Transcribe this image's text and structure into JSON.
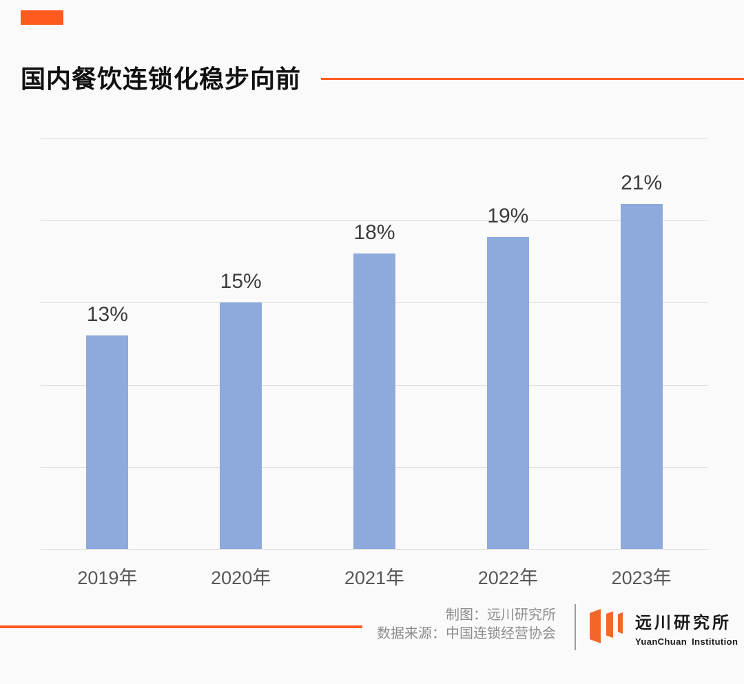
{
  "page": {
    "background": "#fafafa",
    "accent_color": "#ff5b1f"
  },
  "header": {
    "title": "国内餐饮连锁化稳步向前"
  },
  "chart_data": {
    "type": "bar",
    "title": "国内餐饮连锁化稳步向前",
    "categories": [
      "2019年",
      "2020年",
      "2021年",
      "2022年",
      "2023年"
    ],
    "values": [
      13,
      15,
      18,
      19,
      21
    ],
    "value_labels": [
      "13%",
      "15%",
      "18%",
      "19%",
      "21%"
    ],
    "xlabel": "",
    "ylabel": "",
    "ylim": [
      0,
      25
    ],
    "gridline_step": 5,
    "grid": true,
    "legend": "none",
    "bar_color": "#8ea9db",
    "gridline_color": "#dedede"
  },
  "footer": {
    "credit_line1": "制图：远川研究所",
    "credit_line2": "数据来源：中国连锁经营协会",
    "logo": {
      "icon": "yuanchuan-logo-icon",
      "icon_color": "#f2662a",
      "name_cn": "远川研究所",
      "name_en": "YuanChuan Institution"
    }
  }
}
